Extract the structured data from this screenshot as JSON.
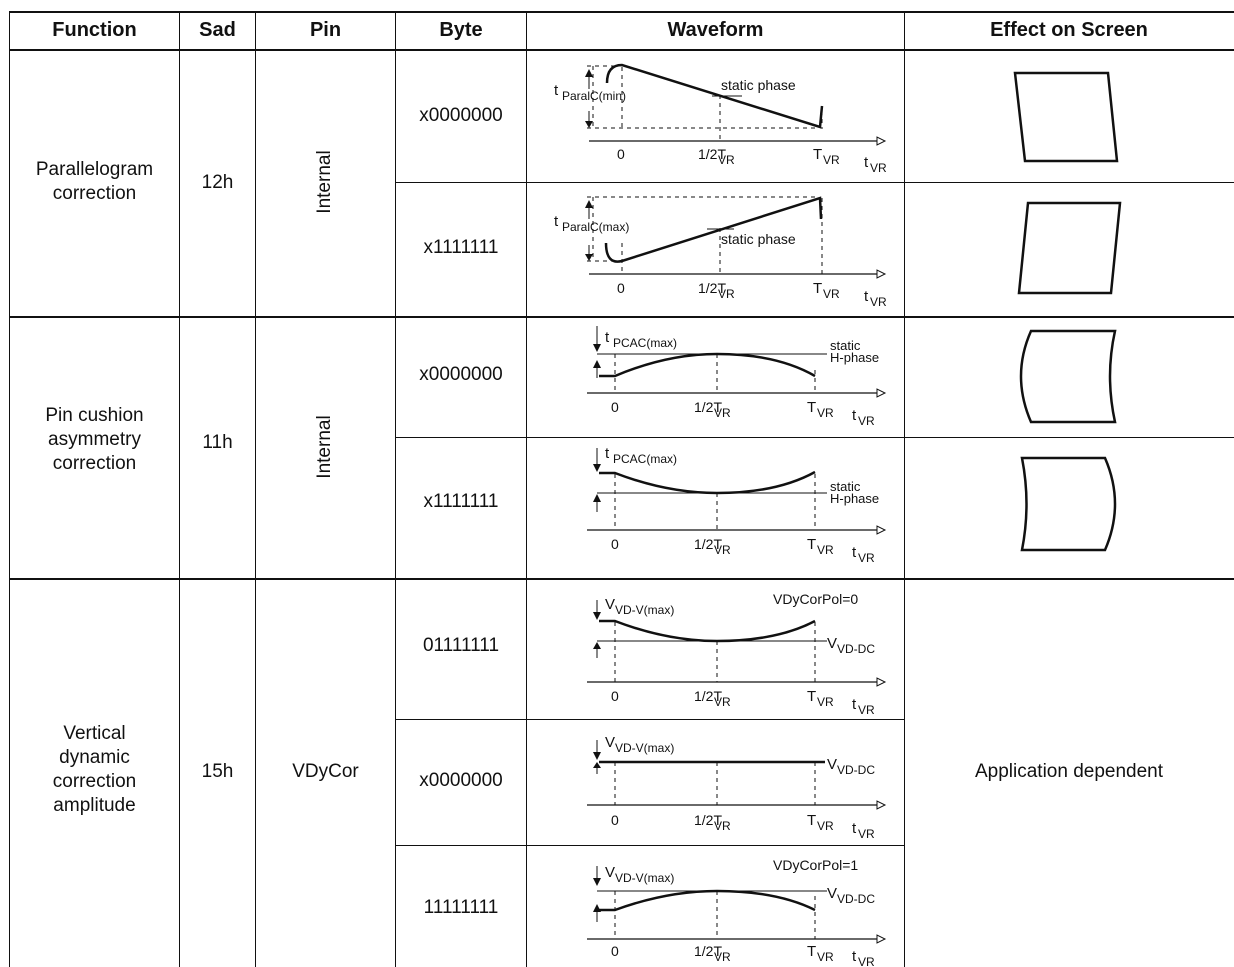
{
  "headers": {
    "function": "Function",
    "sad": "Sad",
    "pin": "Pin",
    "byte": "Byte",
    "waveform": "Waveform",
    "effect": "Effect on Screen"
  },
  "groups": [
    {
      "function": "Parallelogram correction",
      "sad": "12h",
      "pin": "Internal",
      "rows": [
        {
          "byte": "x0000000",
          "label": "t",
          "label_sub": "ParalC(min)",
          "note": "static phase"
        },
        {
          "byte": "x1111111",
          "label": "t",
          "label_sub": "ParalC(max)",
          "note": "static phase"
        }
      ]
    },
    {
      "function": "Pin cushion asymmetry correction",
      "sad": "11h",
      "pin": "Internal",
      "rows": [
        {
          "byte": "x0000000",
          "label": "t",
          "label_sub": "PCAC(max)",
          "note1": "static",
          "note2": "H-phase"
        },
        {
          "byte": "x1111111",
          "label": "t",
          "label_sub": "PCAC(max)",
          "note1": "static",
          "note2": "H-phase"
        }
      ]
    },
    {
      "function": "Vertical dynamic correction amplitude",
      "sad": "15h",
      "pin": "VDyCor",
      "effect": "Application dependent",
      "rows": [
        {
          "byte": "01111111",
          "label": "V",
          "label_sub": "VD-V(max)",
          "pol": "VDyCorPol=0",
          "dc": "V",
          "dc_sub": "VD-DC"
        },
        {
          "byte": "x0000000",
          "label": "V",
          "label_sub": "VD-V(max)",
          "dc": "V",
          "dc_sub": "VD-DC"
        },
        {
          "byte": "11111111",
          "label": "V",
          "label_sub": "VD-V(max)",
          "pol": "VDyCorPol=1",
          "dc": "V",
          "dc_sub": "VD-DC"
        }
      ]
    }
  ],
  "axis": {
    "zero": "0",
    "half": "1/2T",
    "half_sub": "VR",
    "end": "T",
    "end_sub": "VR",
    "t": "t",
    "t_sub": "VR"
  }
}
